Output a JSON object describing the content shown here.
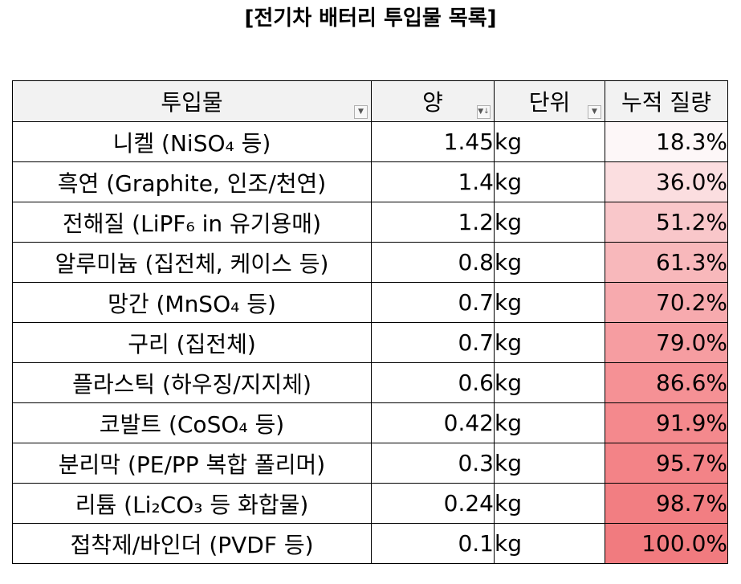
{
  "title": "[전기차 배터리 투입물 목록]",
  "headers": {
    "material": "투입물",
    "quantity": "양",
    "unit": "단위",
    "cumulative": "누적 질량"
  },
  "filter_icons": [
    "filter-dropdown-icon",
    "sort-descending-filter-icon",
    "filter-dropdown-icon"
  ],
  "rows": [
    {
      "material": "니켈 (NiSO₄ 등)",
      "quantity": "1.45",
      "unit": "kg",
      "cumulative": "18.3%",
      "color": "#fdf7f8"
    },
    {
      "material": "흑연 (Graphite, 인조/천연)",
      "quantity": "1.4",
      "unit": "kg",
      "cumulative": "36.0%",
      "color": "#fbdee0"
    },
    {
      "material": "전해질 (LiPF₆ in 유기용매)",
      "quantity": "1.2",
      "unit": "kg",
      "cumulative": "51.2%",
      "color": "#f9c7ca"
    },
    {
      "material": "알루미늄 (집전체, 케이스 등)",
      "quantity": "0.8",
      "unit": "kg",
      "cumulative": "61.3%",
      "color": "#f8b8bb"
    },
    {
      "material": "망간 (MnSO₄ 등)",
      "quantity": "0.7",
      "unit": "kg",
      "cumulative": "70.2%",
      "color": "#f7aaae"
    },
    {
      "material": "구리 (집전체)",
      "quantity": "0.7",
      "unit": "kg",
      "cumulative": "79.0%",
      "color": "#f69da1"
    },
    {
      "material": "플라스틱 (하우징/지지체)",
      "quantity": "0.6",
      "unit": "kg",
      "cumulative": "86.6%",
      "color": "#f59195"
    },
    {
      "material": "코발트 (CoSO₄ 등)",
      "quantity": "0.42",
      "unit": "kg",
      "cumulative": "91.9%",
      "color": "#f4898d"
    },
    {
      "material": "분리막 (PE/PP 복합 폴리머)",
      "quantity": "0.3",
      "unit": "kg",
      "cumulative": "95.7%",
      "color": "#f38387"
    },
    {
      "material": "리튬 (Li₂CO₃ 등 화합물)",
      "quantity": "0.24",
      "unit": "kg",
      "cumulative": "98.7%",
      "color": "#f27e82"
    },
    {
      "material": "접착제/바인더 (PVDF 등)",
      "quantity": "0.1",
      "unit": "kg",
      "cumulative": "100.0%",
      "color": "#f17b7f"
    }
  ]
}
